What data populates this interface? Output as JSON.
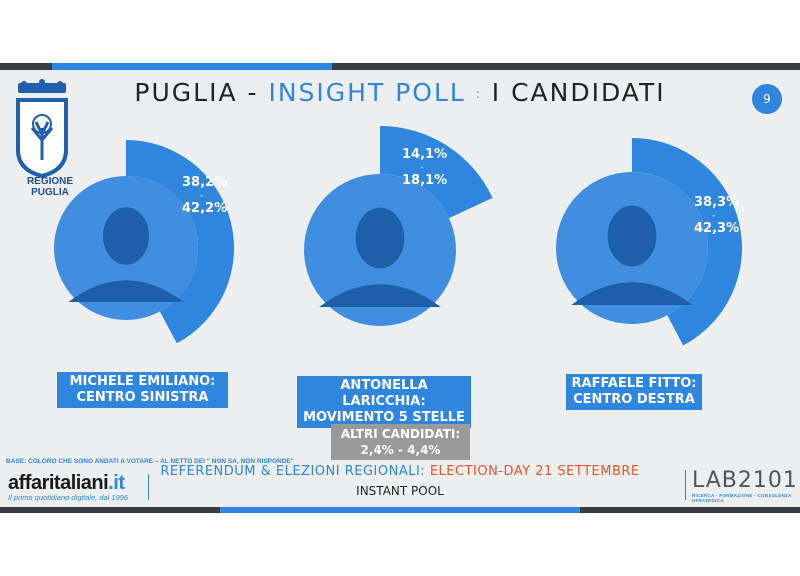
{
  "header": {
    "title_pre": "PUGLIA - ",
    "title_highlight": "INSIGHT POLL",
    "title_sep": ":",
    "title_post": "I CANDIDATI",
    "page_number": "9",
    "region_logo_text": "REGIONE PUGLIA"
  },
  "colors": {
    "accent": "#2e86de",
    "dark_bar": "#3a3d42",
    "orange": "#e8542c",
    "grey_box": "#9a9a9a"
  },
  "chart_data": {
    "type": "pie",
    "title": "PUGLIA - INSIGHT POLL : I CANDIDATI",
    "candidates": [
      {
        "name": "MICHELE EMILIANO:",
        "coalition": "CENTRO SINISTRA",
        "range_low_label": "38,2%",
        "range_sep": "-",
        "range_high_label": "42,2%",
        "low": 38.2,
        "high": 42.2
      },
      {
        "name": "ANTONELLA LARICCHIA:",
        "coalition": "MOVIMENTO 5 STELLE",
        "range_low_label": "14,1%",
        "range_sep": "-",
        "range_high_label": "18,1%",
        "low": 14.1,
        "high": 18.1
      },
      {
        "name": "RAFFAELE FITTO:",
        "coalition": "CENTRO DESTRA",
        "range_low_label": "38,3%",
        "range_sep": "-",
        "range_high_label": "42,3%",
        "low": 38.3,
        "high": 42.3
      }
    ],
    "others": {
      "label": "ALTRI CANDIDATI:",
      "range": "2,4% - 4,4%",
      "low": 2.4,
      "high": 4.4
    }
  },
  "footer": {
    "base_note": "BASE: COLORO CHE SONO ANDATI A VOTARE – AL NETTO DEI \" NON SA, NON RISPONDE\"",
    "brand_name": "affaritaliani",
    "brand_tld": ".it",
    "brand_tagline": "Il primo quotidiano digitale, dal 1996",
    "ref_blue": "REFERENDUM & ELEZIONI REGIONALI: ",
    "ref_red": "ELECTION-DAY 21 SETTEMBRE",
    "instant": "INSTANT POOL",
    "lab_name": "LAB2101",
    "lab_tagline": "RICERCA · FORMAZIONE · CONSULENZA STRATEGICA"
  }
}
